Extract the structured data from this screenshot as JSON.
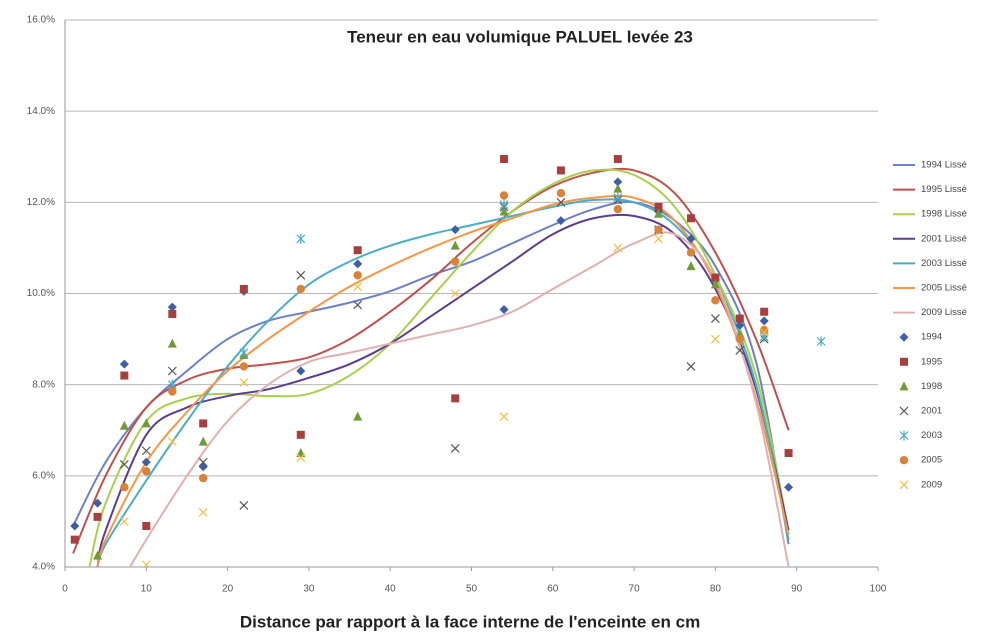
{
  "chart_data": {
    "type": "scatter",
    "title": "Teneur en eau volumique PALUEL levée 23",
    "x_label": "Distance par rapport à la face interne de l'enceinte en cm",
    "xlim": [
      0,
      100
    ],
    "xticks": [
      0,
      10,
      20,
      30,
      40,
      50,
      60,
      70,
      80,
      90,
      100
    ],
    "ylim": [
      4,
      16
    ],
    "yticks": [
      {
        "value": 4,
        "label": "4.0%"
      },
      {
        "value": 6,
        "label": "6.0%"
      },
      {
        "value": 8,
        "label": "8.0%"
      },
      {
        "value": 10,
        "label": "10.0%"
      },
      {
        "value": 12,
        "label": "12.0%"
      },
      {
        "value": 14,
        "label": "14.0%"
      },
      {
        "value": 16,
        "label": "16.0%"
      }
    ],
    "grid": true,
    "legend": "right",
    "series": [
      {
        "name": "1994 Lissé",
        "mode": "line",
        "color": "#6b80c9",
        "x": [
          1,
          5,
          10,
          15,
          20,
          25,
          30,
          35,
          40,
          45,
          50,
          55,
          60,
          65,
          70,
          75,
          80,
          85,
          89
        ],
        "values": [
          4.9,
          6.3,
          7.5,
          8.3,
          9.0,
          9.4,
          9.6,
          9.8,
          10.05,
          10.4,
          10.7,
          11.1,
          11.5,
          11.85,
          12.0,
          11.6,
          10.6,
          8.5,
          4.5
        ]
      },
      {
        "name": "1995 Lissé",
        "mode": "line",
        "color": "#c0504d",
        "x": [
          1,
          5,
          10,
          15,
          20,
          25,
          30,
          35,
          40,
          45,
          50,
          55,
          60,
          65,
          70,
          75,
          80,
          85,
          89
        ],
        "values": [
          4.3,
          6.0,
          7.5,
          8.1,
          8.35,
          8.45,
          8.6,
          9.0,
          9.6,
          10.3,
          11.1,
          11.8,
          12.35,
          12.65,
          12.7,
          12.2,
          10.9,
          9.0,
          7.0
        ]
      },
      {
        "name": "1998 Lissé",
        "mode": "line",
        "color": "#a8d04c",
        "x": [
          3,
          5,
          10,
          15,
          20,
          25,
          30,
          35,
          40,
          45,
          50,
          55,
          60,
          65,
          70,
          75,
          80,
          85,
          89
        ],
        "values": [
          4.0,
          5.4,
          7.2,
          7.7,
          7.8,
          7.75,
          7.8,
          8.2,
          8.9,
          9.9,
          10.9,
          11.8,
          12.4,
          12.7,
          12.6,
          11.9,
          10.4,
          8.2,
          4.8
        ]
      },
      {
        "name": "2001 Lissé",
        "mode": "line",
        "color": "#5b3d91",
        "x": [
          4,
          5,
          10,
          15,
          20,
          25,
          30,
          35,
          40,
          45,
          50,
          55,
          60,
          65,
          70,
          75,
          80,
          85,
          89
        ],
        "values": [
          4.0,
          4.8,
          6.9,
          7.5,
          7.75,
          7.9,
          8.15,
          8.45,
          8.9,
          9.5,
          10.1,
          10.7,
          11.3,
          11.65,
          11.7,
          11.3,
          10.1,
          7.9,
          4.8
        ]
      },
      {
        "name": "2003 Lissé",
        "mode": "line",
        "color": "#4bacc6",
        "x": [
          4,
          5,
          10,
          15,
          20,
          25,
          30,
          35,
          40,
          45,
          50,
          55,
          60,
          65,
          70,
          75,
          80,
          85,
          89
        ],
        "values": [
          4.0,
          4.5,
          5.9,
          7.2,
          8.4,
          9.4,
          10.2,
          10.7,
          11.05,
          11.3,
          11.5,
          11.7,
          11.9,
          12.05,
          12.0,
          11.5,
          10.3,
          8.0,
          4.6
        ]
      },
      {
        "name": "2005 Lissé",
        "mode": "line",
        "color": "#f79646",
        "x": [
          4,
          5,
          10,
          15,
          20,
          25,
          30,
          35,
          40,
          45,
          50,
          55,
          60,
          65,
          70,
          75,
          80,
          85,
          89
        ],
        "values": [
          4.0,
          4.6,
          6.3,
          7.4,
          8.3,
          9.0,
          9.6,
          10.15,
          10.6,
          11.0,
          11.35,
          11.65,
          11.95,
          12.1,
          12.1,
          11.6,
          10.2,
          7.7,
          4.7
        ]
      },
      {
        "name": "2009 Lissé",
        "mode": "line",
        "color": "#e0b0b0",
        "x": [
          8,
          10,
          15,
          20,
          25,
          30,
          35,
          40,
          45,
          50,
          55,
          60,
          65,
          70,
          75,
          80,
          85,
          89
        ],
        "values": [
          4.0,
          4.6,
          6.0,
          7.2,
          8.0,
          8.5,
          8.7,
          8.9,
          9.1,
          9.3,
          9.6,
          10.1,
          10.6,
          11.1,
          11.3,
          10.3,
          7.6,
          4.0
        ]
      },
      {
        "name": "1994",
        "mode": "markers",
        "marker": "diamond",
        "color": "#3f5fa5",
        "x": [
          1.2,
          4,
          7.3,
          10,
          13.2,
          17,
          22,
          29,
          36,
          48,
          54,
          61,
          68,
          73,
          77,
          80,
          83,
          86,
          89
        ],
        "values": [
          4.9,
          5.4,
          8.45,
          6.3,
          9.7,
          6.2,
          10.05,
          8.3,
          10.65,
          11.4,
          9.65,
          11.6,
          12.45,
          11.8,
          11.2,
          10.3,
          9.3,
          9.4,
          5.75
        ]
      },
      {
        "name": "1995",
        "mode": "markers",
        "marker": "square",
        "color": "#a5403e",
        "x": [
          1.2,
          4,
          7.3,
          10,
          13.2,
          17,
          22,
          29,
          36,
          48,
          54,
          61,
          68,
          73,
          77,
          80,
          83,
          86,
          89
        ],
        "values": [
          4.6,
          5.1,
          8.2,
          4.9,
          9.55,
          7.15,
          10.1,
          6.9,
          10.95,
          7.7,
          12.95,
          12.7,
          12.95,
          11.9,
          11.65,
          10.35,
          9.45,
          9.6,
          6.5
        ]
      },
      {
        "name": "1998",
        "mode": "markers",
        "marker": "triangle",
        "color": "#6f9a3a",
        "x": [
          4,
          7.3,
          10,
          13.2,
          17,
          22,
          29,
          36,
          48,
          54,
          68,
          73,
          77,
          80,
          83
        ],
        "values": [
          4.25,
          7.1,
          7.15,
          8.9,
          6.75,
          8.65,
          6.5,
          7.3,
          11.05,
          11.8,
          12.3,
          11.75,
          10.6,
          10.2,
          9.1
        ]
      },
      {
        "name": "2001",
        "mode": "markers",
        "marker": "x",
        "color": "#555555",
        "x": [
          7.3,
          10,
          13.2,
          17,
          22,
          29,
          36,
          48,
          54,
          61,
          68,
          73,
          77,
          80,
          83,
          86
        ],
        "values": [
          6.25,
          6.55,
          8.3,
          6.3,
          5.35,
          10.4,
          9.75,
          6.6,
          11.9,
          12.0,
          12.05,
          11.4,
          8.4,
          9.45,
          8.75,
          9.0
        ]
      },
      {
        "name": "2003",
        "mode": "markers",
        "marker": "asterisk",
        "color": "#4bacc6",
        "x": [
          13.2,
          22,
          29,
          54,
          68,
          86,
          93
        ],
        "values": [
          8.0,
          8.7,
          11.2,
          11.95,
          12.1,
          9.05,
          8.95
        ]
      },
      {
        "name": "2005",
        "mode": "markers",
        "marker": "circle",
        "color": "#d9823a",
        "x": [
          7.3,
          10,
          13.2,
          17,
          22,
          29,
          36,
          48,
          54,
          61,
          68,
          73,
          77,
          80,
          83,
          86
        ],
        "values": [
          5.75,
          6.1,
          7.85,
          5.95,
          8.4,
          10.1,
          10.4,
          10.7,
          12.15,
          12.2,
          11.85,
          11.4,
          10.9,
          9.85,
          9.0,
          9.2
        ]
      },
      {
        "name": "2009",
        "mode": "markers",
        "marker": "x",
        "color": "#f2c040",
        "x": [
          7.3,
          10,
          13.2,
          17,
          22,
          29,
          36,
          48,
          54,
          68,
          73,
          80,
          86
        ],
        "values": [
          5.0,
          4.05,
          6.75,
          5.2,
          8.05,
          6.4,
          10.15,
          10.0,
          7.3,
          11.0,
          11.2,
          9.0,
          9.15
        ]
      }
    ]
  }
}
